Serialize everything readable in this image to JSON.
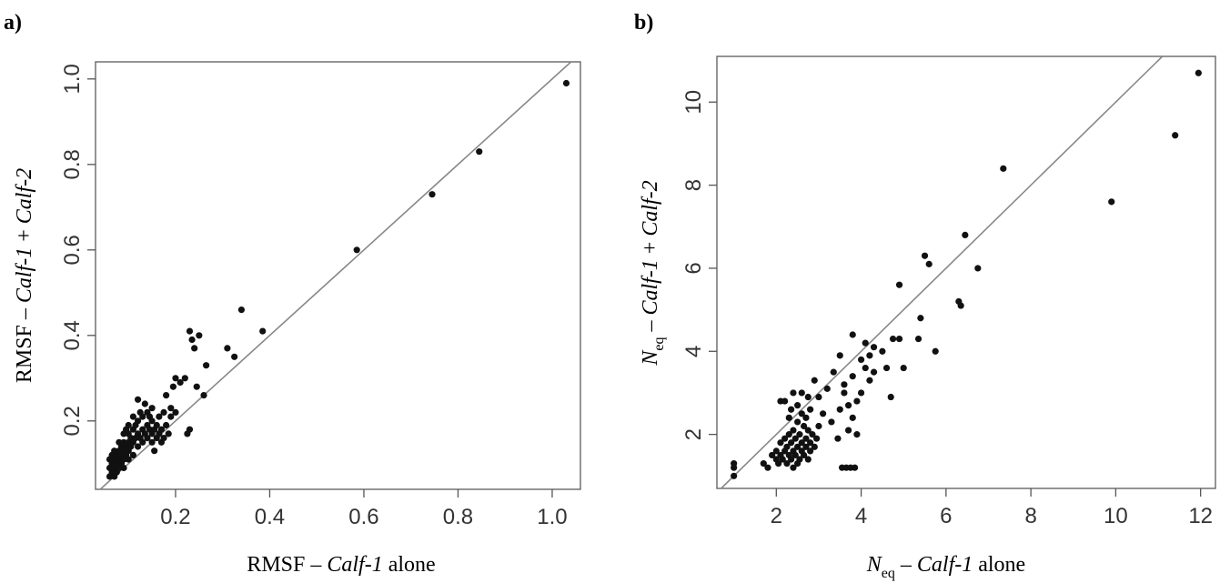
{
  "chart_data": [
    {
      "type": "scatter",
      "panel_label": "a)",
      "xlabel": {
        "main": "RMSF",
        "dash": " – ",
        "ital": "Calf-1",
        "tail": " alone"
      },
      "ylabel": {
        "main": "RMSF",
        "dash": " – ",
        "ital1": "Calf-1",
        "plus": " + ",
        "ital2": "Calf-2"
      },
      "xlim": [
        0.03,
        1.06
      ],
      "ylim": [
        0.04,
        1.04
      ],
      "xticks": [
        {
          "value": 0.2,
          "label": "0.2"
        },
        {
          "value": 0.4,
          "label": "0.4"
        },
        {
          "value": 0.6,
          "label": "0.6"
        },
        {
          "value": 0.8,
          "label": "0.8"
        },
        {
          "value": 1.0,
          "label": "1.0"
        }
      ],
      "yticks": [
        {
          "value": 0.2,
          "label": "0.2"
        },
        {
          "value": 0.4,
          "label": "0.4"
        },
        {
          "value": 0.6,
          "label": "0.6"
        },
        {
          "value": 0.8,
          "label": "0.8"
        },
        {
          "value": 1.0,
          "label": "1.0"
        }
      ],
      "reference_line": "y = x",
      "grid": false,
      "points": [
        [
          0.06,
          0.07
        ],
        [
          0.06,
          0.09
        ],
        [
          0.06,
          0.11
        ],
        [
          0.065,
          0.08
        ],
        [
          0.065,
          0.1
        ],
        [
          0.065,
          0.12
        ],
        [
          0.07,
          0.07
        ],
        [
          0.07,
          0.09
        ],
        [
          0.07,
          0.11
        ],
        [
          0.07,
          0.13
        ],
        [
          0.075,
          0.08
        ],
        [
          0.075,
          0.1
        ],
        [
          0.075,
          0.12
        ],
        [
          0.08,
          0.09
        ],
        [
          0.08,
          0.11
        ],
        [
          0.08,
          0.13
        ],
        [
          0.08,
          0.15
        ],
        [
          0.085,
          0.1
        ],
        [
          0.085,
          0.12
        ],
        [
          0.085,
          0.14
        ],
        [
          0.09,
          0.09
        ],
        [
          0.09,
          0.11
        ],
        [
          0.09,
          0.13
        ],
        [
          0.09,
          0.15
        ],
        [
          0.09,
          0.17
        ],
        [
          0.095,
          0.12
        ],
        [
          0.095,
          0.14
        ],
        [
          0.095,
          0.18
        ],
        [
          0.1,
          0.11
        ],
        [
          0.1,
          0.13
        ],
        [
          0.1,
          0.15
        ],
        [
          0.1,
          0.17
        ],
        [
          0.1,
          0.19
        ],
        [
          0.105,
          0.14
        ],
        [
          0.105,
          0.16
        ],
        [
          0.11,
          0.12
        ],
        [
          0.11,
          0.15
        ],
        [
          0.11,
          0.18
        ],
        [
          0.11,
          0.21
        ],
        [
          0.115,
          0.16
        ],
        [
          0.115,
          0.19
        ],
        [
          0.12,
          0.14
        ],
        [
          0.12,
          0.17
        ],
        [
          0.12,
          0.2
        ],
        [
          0.12,
          0.25
        ],
        [
          0.125,
          0.16
        ],
        [
          0.125,
          0.22
        ],
        [
          0.13,
          0.15
        ],
        [
          0.13,
          0.18
        ],
        [
          0.13,
          0.21
        ],
        [
          0.135,
          0.17
        ],
        [
          0.135,
          0.24
        ],
        [
          0.14,
          0.16
        ],
        [
          0.14,
          0.19
        ],
        [
          0.14,
          0.22
        ],
        [
          0.145,
          0.18
        ],
        [
          0.145,
          0.21
        ],
        [
          0.15,
          0.15
        ],
        [
          0.15,
          0.17
        ],
        [
          0.15,
          0.2
        ],
        [
          0.15,
          0.23
        ],
        [
          0.155,
          0.13
        ],
        [
          0.155,
          0.18
        ],
        [
          0.16,
          0.16
        ],
        [
          0.16,
          0.19
        ],
        [
          0.165,
          0.17
        ],
        [
          0.165,
          0.21
        ],
        [
          0.17,
          0.15
        ],
        [
          0.17,
          0.18
        ],
        [
          0.175,
          0.16
        ],
        [
          0.175,
          0.22
        ],
        [
          0.18,
          0.19
        ],
        [
          0.18,
          0.26
        ],
        [
          0.185,
          0.17
        ],
        [
          0.19,
          0.21
        ],
        [
          0.19,
          0.23
        ],
        [
          0.195,
          0.28
        ],
        [
          0.2,
          0.22
        ],
        [
          0.2,
          0.3
        ],
        [
          0.21,
          0.29
        ],
        [
          0.22,
          0.3
        ],
        [
          0.225,
          0.17
        ],
        [
          0.23,
          0.18
        ],
        [
          0.23,
          0.41
        ],
        [
          0.235,
          0.39
        ],
        [
          0.24,
          0.37
        ],
        [
          0.245,
          0.28
        ],
        [
          0.25,
          0.4
        ],
        [
          0.26,
          0.26
        ],
        [
          0.265,
          0.33
        ],
        [
          0.31,
          0.37
        ],
        [
          0.325,
          0.35
        ],
        [
          0.34,
          0.46
        ],
        [
          0.385,
          0.41
        ],
        [
          0.585,
          0.6
        ],
        [
          0.745,
          0.73
        ],
        [
          0.845,
          0.83
        ],
        [
          1.03,
          0.99
        ]
      ]
    },
    {
      "type": "scatter",
      "panel_label": "b)",
      "xlabel": {
        "main": "N",
        "sub": "eq",
        "dash": " – ",
        "ital": "Calf-1",
        "tail": " alone"
      },
      "ylabel": {
        "main": "N",
        "sub": "eq",
        "dash": " – ",
        "ital1": "Calf-1",
        "plus": " + ",
        "ital2": "Calf-2"
      },
      "xlim": [
        0.6,
        12.35
      ],
      "ylim": [
        0.7,
        11.1
      ],
      "xticks": [
        {
          "value": 2,
          "label": "2"
        },
        {
          "value": 4,
          "label": "4"
        },
        {
          "value": 6,
          "label": "6"
        },
        {
          "value": 8,
          "label": "8"
        },
        {
          "value": 10,
          "label": "10"
        },
        {
          "value": 12,
          "label": "12"
        }
      ],
      "yticks": [
        {
          "value": 2,
          "label": "2"
        },
        {
          "value": 4,
          "label": "4"
        },
        {
          "value": 6,
          "label": "6"
        },
        {
          "value": 8,
          "label": "8"
        },
        {
          "value": 10,
          "label": "10"
        }
      ],
      "reference_line": "y = x",
      "grid": false,
      "points": [
        [
          1.0,
          1.0
        ],
        [
          1.0,
          1.3
        ],
        [
          1.0,
          1.2
        ],
        [
          1.7,
          1.3
        ],
        [
          1.8,
          1.2
        ],
        [
          1.9,
          1.5
        ],
        [
          2.0,
          1.4
        ],
        [
          2.0,
          1.6
        ],
        [
          2.05,
          1.3
        ],
        [
          2.1,
          1.5
        ],
        [
          2.1,
          1.8
        ],
        [
          2.1,
          2.8
        ],
        [
          2.15,
          1.4
        ],
        [
          2.2,
          1.6
        ],
        [
          2.2,
          1.9
        ],
        [
          2.2,
          2.8
        ],
        [
          2.25,
          1.3
        ],
        [
          2.25,
          1.7
        ],
        [
          2.3,
          1.5
        ],
        [
          2.3,
          2.0
        ],
        [
          2.3,
          2.4
        ],
        [
          2.35,
          1.4
        ],
        [
          2.35,
          1.8
        ],
        [
          2.35,
          2.6
        ],
        [
          2.4,
          1.2
        ],
        [
          2.4,
          1.6
        ],
        [
          2.4,
          2.1
        ],
        [
          2.4,
          3.0
        ],
        [
          2.45,
          1.5
        ],
        [
          2.45,
          1.9
        ],
        [
          2.5,
          1.3
        ],
        [
          2.5,
          1.7
        ],
        [
          2.5,
          2.3
        ],
        [
          2.5,
          2.7
        ],
        [
          2.55,
          1.4
        ],
        [
          2.55,
          2.0
        ],
        [
          2.6,
          1.6
        ],
        [
          2.6,
          1.8
        ],
        [
          2.6,
          2.5
        ],
        [
          2.6,
          3.0
        ],
        [
          2.65,
          1.5
        ],
        [
          2.65,
          2.2
        ],
        [
          2.7,
          1.7
        ],
        [
          2.7,
          1.9
        ],
        [
          2.7,
          2.4
        ],
        [
          2.75,
          1.4
        ],
        [
          2.75,
          2.1
        ],
        [
          2.75,
          2.9
        ],
        [
          2.8,
          1.6
        ],
        [
          2.8,
          1.8
        ],
        [
          2.8,
          2.6
        ],
        [
          2.85,
          2.0
        ],
        [
          2.9,
          1.7
        ],
        [
          2.9,
          3.3
        ],
        [
          2.95,
          1.9
        ],
        [
          3.0,
          2.2
        ],
        [
          3.0,
          2.9
        ],
        [
          3.1,
          2.5
        ],
        [
          3.2,
          3.1
        ],
        [
          3.3,
          2.3
        ],
        [
          3.35,
          3.5
        ],
        [
          3.45,
          1.9
        ],
        [
          3.5,
          2.6
        ],
        [
          3.5,
          3.9
        ],
        [
          3.55,
          1.2
        ],
        [
          3.6,
          3.0
        ],
        [
          3.6,
          3.2
        ],
        [
          3.65,
          1.2
        ],
        [
          3.7,
          2.1
        ],
        [
          3.7,
          2.7
        ],
        [
          3.75,
          1.2
        ],
        [
          3.8,
          2.4
        ],
        [
          3.8,
          3.4
        ],
        [
          3.8,
          4.4
        ],
        [
          3.85,
          1.2
        ],
        [
          3.9,
          2.0
        ],
        [
          3.9,
          2.8
        ],
        [
          4.0,
          3.0
        ],
        [
          4.0,
          3.8
        ],
        [
          4.1,
          3.6
        ],
        [
          4.1,
          4.2
        ],
        [
          4.2,
          3.9
        ],
        [
          4.2,
          3.3
        ],
        [
          4.3,
          4.1
        ],
        [
          4.3,
          3.5
        ],
        [
          4.5,
          4.0
        ],
        [
          4.6,
          3.6
        ],
        [
          4.7,
          2.9
        ],
        [
          4.75,
          4.3
        ],
        [
          4.9,
          4.3
        ],
        [
          4.9,
          5.6
        ],
        [
          5.0,
          3.6
        ],
        [
          5.35,
          4.3
        ],
        [
          5.4,
          4.8
        ],
        [
          5.5,
          6.3
        ],
        [
          5.6,
          6.1
        ],
        [
          5.75,
          4.0
        ],
        [
          6.3,
          5.2
        ],
        [
          6.35,
          5.1
        ],
        [
          6.45,
          6.8
        ],
        [
          6.75,
          6.0
        ],
        [
          7.35,
          8.4
        ],
        [
          9.9,
          7.6
        ],
        [
          11.4,
          9.2
        ],
        [
          11.95,
          10.7
        ]
      ]
    }
  ]
}
